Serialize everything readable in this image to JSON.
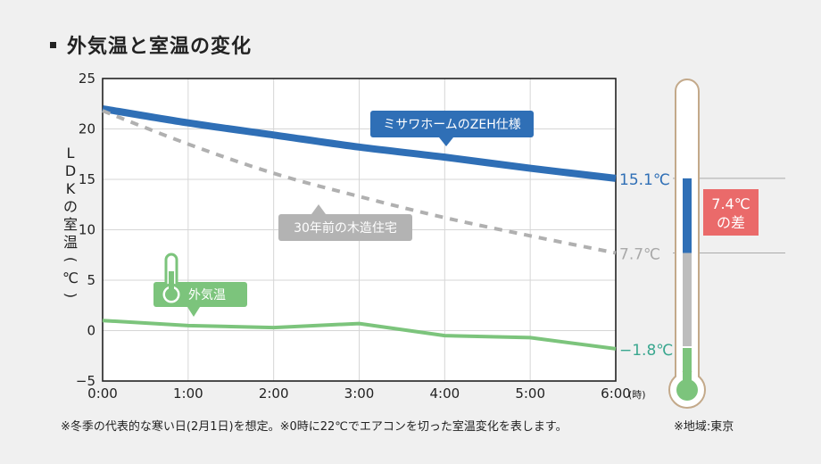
{
  "title": "外気温と室温の変化",
  "ylabel": "LDKの室温(℃)",
  "x_unit": "(時)",
  "footnote_main": "※冬季の代表的な寒い日(2月1日)を想定。※0時に22℃でエアコンを切った室温変化を表します。",
  "footnote_region": "※地域:東京",
  "colors": {
    "zeh": "#2f6fb6",
    "wood": "#b0b0b0",
    "outdoor": "#7cc47c",
    "diff": "#ea6a6a"
  },
  "icons": {
    "outdoor_label_icon": "thermometer-icon",
    "side_gauge": "thermometer-icon"
  },
  "chart_data": {
    "type": "line",
    "x": [
      "0:00",
      "1:00",
      "2:00",
      "3:00",
      "4:00",
      "5:00",
      "6:00"
    ],
    "xnum": [
      0,
      1,
      2,
      3,
      4,
      5,
      6
    ],
    "ylim": [
      -5,
      25
    ],
    "yticks": [
      25,
      20,
      15,
      10,
      5,
      0,
      -5
    ],
    "ytick_labels": [
      "25",
      "20",
      "15",
      "10",
      "5",
      "0",
      "−5"
    ],
    "grid": true,
    "series": [
      {
        "name": "ミサワホームのZEH仕様",
        "key": "zeh",
        "style": "solid",
        "values": [
          22.0,
          20.6,
          19.4,
          18.2,
          17.2,
          16.1,
          15.1
        ],
        "end_label": "15.1℃"
      },
      {
        "name": "30年前の木造住宅",
        "key": "wood",
        "style": "dashed",
        "values": [
          21.8,
          18.5,
          15.6,
          13.3,
          11.2,
          9.4,
          7.7
        ],
        "end_label": "7.7℃"
      },
      {
        "name": "外気温",
        "key": "outdoor",
        "style": "solid",
        "values": [
          1.0,
          0.5,
          0.3,
          0.7,
          -0.5,
          -0.7,
          -1.8
        ],
        "end_label": "−1.8℃"
      }
    ],
    "difference": {
      "value": 7.4,
      "line1": "7.4℃",
      "line2": "の差"
    }
  }
}
